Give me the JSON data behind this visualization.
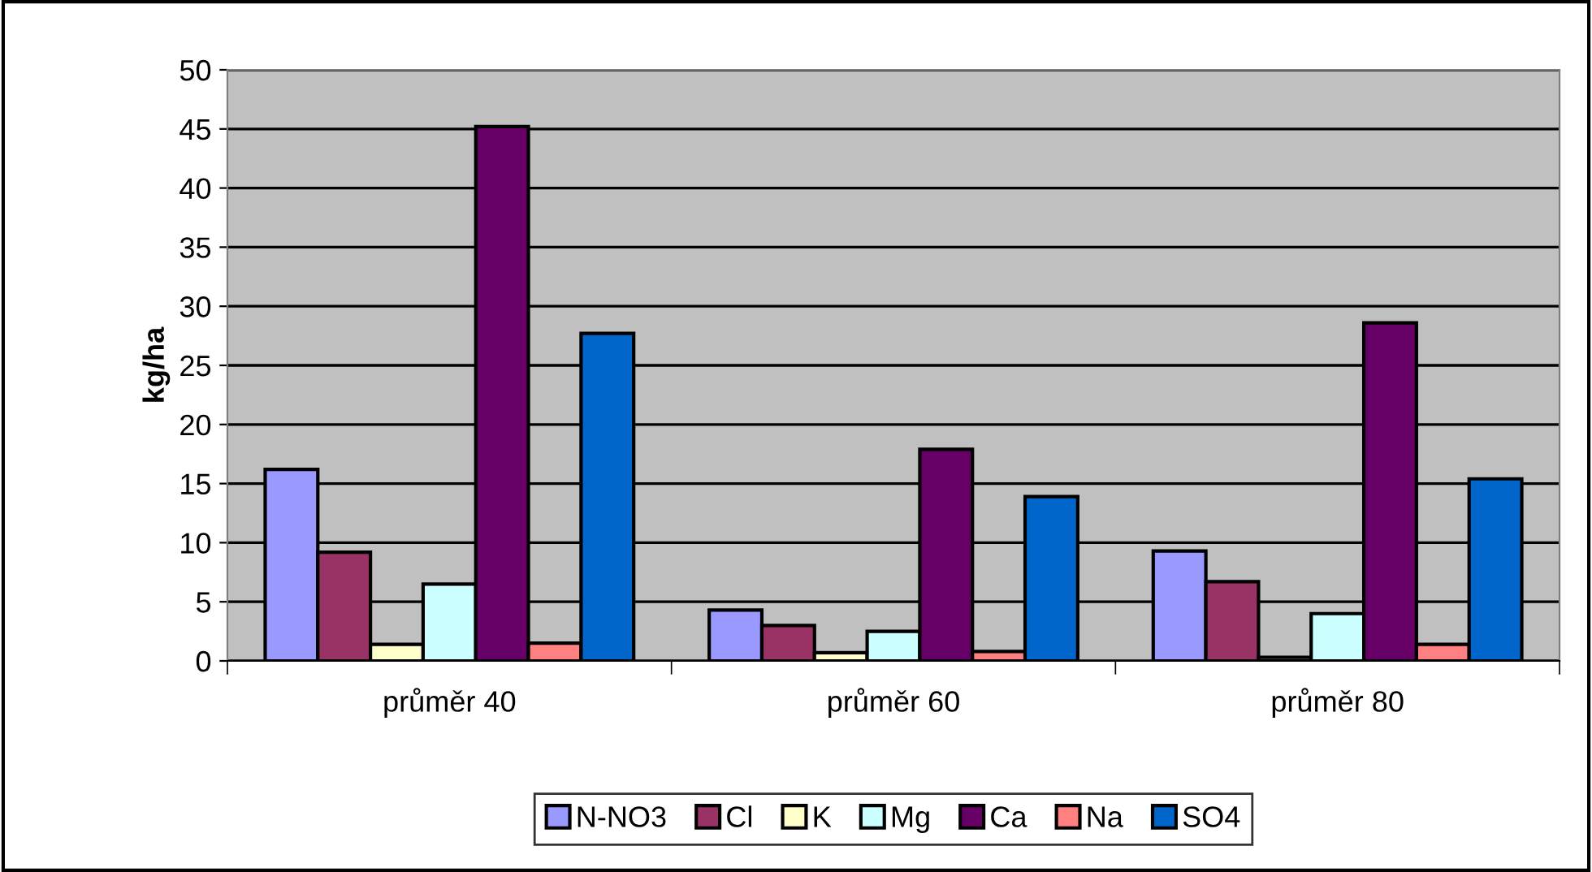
{
  "chart_data": {
    "type": "bar",
    "ylabel": "kg/ha",
    "categories": [
      "průměr 40",
      "průměr 60",
      "průměr 80"
    ],
    "series": [
      {
        "name": "N-NO3",
        "color": "#9999ff",
        "values": [
          16.2,
          4.3,
          9.3
        ]
      },
      {
        "name": "Cl",
        "color": "#993366",
        "values": [
          9.2,
          3.0,
          6.7
        ]
      },
      {
        "name": "K",
        "color": "#ffffcc",
        "values": [
          1.4,
          0.7,
          0.3
        ]
      },
      {
        "name": "Mg",
        "color": "#ccffff",
        "values": [
          6.5,
          2.5,
          4.0
        ]
      },
      {
        "name": "Ca",
        "color": "#660066",
        "values": [
          45.2,
          17.9,
          28.6
        ]
      },
      {
        "name": "Na",
        "color": "#ff8080",
        "values": [
          1.5,
          0.8,
          1.4
        ]
      },
      {
        "name": "SO4",
        "color": "#0066cc",
        "values": [
          27.7,
          13.9,
          15.4
        ]
      }
    ],
    "ylim": [
      0,
      50
    ],
    "yticks": [
      0,
      5,
      10,
      15,
      20,
      25,
      30,
      35,
      40,
      45,
      50
    ],
    "grid": "y",
    "legend": "bottom"
  }
}
